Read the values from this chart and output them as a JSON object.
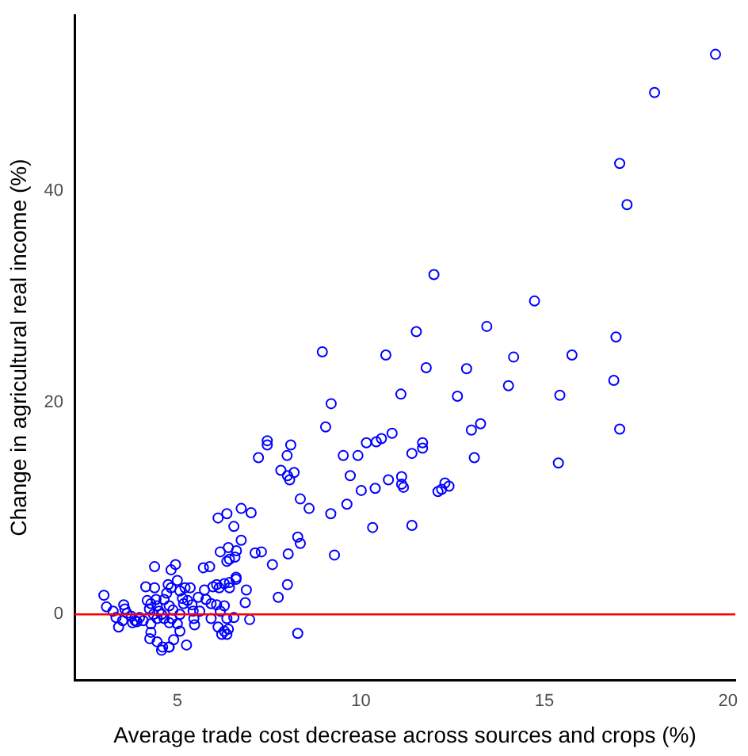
{
  "chart_data": {
    "type": "scatter",
    "xlabel": "Average trade cost decrease across sources and crops (%)",
    "ylabel": "Change in agricultural real income (%)",
    "xlim": [
      2.2,
      20.2
    ],
    "xticks": [
      5,
      10,
      15,
      20
    ],
    "ylim": [
      -6.2,
      56.6
    ],
    "yticks": [
      0,
      20,
      40
    ],
    "grid": false,
    "legend": false,
    "marker": "circle",
    "ref_lines": [
      {
        "axis": "y",
        "value": 0,
        "color": "#ff0000",
        "line_style": "solid"
      }
    ],
    "series": [
      {
        "color": "#0000ff",
        "x": [
          19.66,
          18.0,
          17.05,
          17.25,
          11.99,
          14.73,
          13.43,
          16.95,
          14.16,
          15.75,
          12.88,
          14.02,
          12.63,
          15.42,
          16.89,
          13.26,
          13.01,
          17.05,
          13.09,
          15.38,
          12.29,
          12.2,
          12.4,
          12.1,
          11.51,
          8.95,
          10.68,
          11.78,
          11.09,
          9.19,
          9.04,
          7.45,
          7.45,
          8.09,
          7.21,
          7.99,
          9.52,
          9.92,
          10.15,
          10.42,
          10.56,
          10.85,
          11.39,
          11.68,
          11.68,
          9.71,
          10.75,
          11.11,
          11.11,
          11.16,
          10.01,
          10.39,
          9.62,
          9.18,
          11.39,
          10.32,
          9.28,
          3.0,
          3.07,
          3.25,
          3.54,
          3.33,
          3.4,
          3.51,
          3.63,
          3.75,
          3.85,
          3.97,
          4.07,
          3.78,
          3.9,
          3.57,
          4.14,
          4.38,
          4.38,
          4.18,
          4.28,
          4.24,
          4.42,
          4.45,
          4.5,
          4.57,
          4.35,
          4.45,
          4.64,
          4.28,
          4.28,
          4.25,
          4.45,
          4.6,
          4.57,
          4.78,
          4.71,
          4.64,
          4.83,
          4.78,
          4.88,
          4.85,
          4.78,
          4.83,
          4.95,
          4.75,
          5.0,
          5.07,
          5.14,
          5.17,
          5.07,
          5.0,
          5.07,
          4.9,
          4.77,
          5.21,
          5.35,
          5.28,
          5.4,
          5.43,
          5.25,
          5.45,
          5.47,
          5.61,
          5.57,
          5.74,
          5.78,
          5.92,
          5.97,
          5.71,
          5.88,
          5.92,
          6.11,
          6.28,
          6.35,
          6.21,
          6.07,
          6.28,
          6.42,
          6.35,
          6.39,
          6.17,
          6.07,
          6.14,
          6.28,
          6.42,
          6.6,
          6.11,
          6.35,
          6.54,
          6.74,
          7.01,
          6.74,
          6.39,
          6.42,
          6.57,
          6.17,
          6.61,
          6.35,
          6.6,
          6.88,
          6.85,
          6.97,
          6.54,
          7.12,
          7.29,
          7.59,
          8.02,
          8.28,
          8.35,
          8.0,
          7.75,
          8.28,
          8.35,
          8.59,
          7.82,
          8.0,
          8.06,
          8.18
        ],
        "values": [
          52.9,
          49.3,
          42.6,
          38.7,
          32.1,
          29.6,
          27.2,
          26.2,
          24.3,
          24.5,
          23.2,
          21.6,
          20.6,
          20.7,
          22.1,
          18.0,
          17.4,
          17.5,
          14.8,
          14.3,
          12.4,
          11.8,
          12.1,
          11.6,
          26.7,
          24.8,
          24.5,
          23.3,
          20.8,
          19.9,
          17.7,
          16.4,
          16.0,
          16.0,
          14.8,
          15.0,
          15.0,
          15.0,
          16.2,
          16.3,
          16.6,
          17.1,
          15.2,
          15.7,
          16.2,
          13.1,
          12.7,
          13.0,
          12.3,
          12.0,
          11.7,
          11.9,
          10.4,
          9.5,
          8.4,
          8.2,
          5.6,
          1.8,
          0.7,
          0.3,
          0.9,
          -0.3,
          -1.2,
          -0.6,
          0.1,
          -0.2,
          -0.6,
          -0.3,
          -0.6,
          -0.8,
          -0.7,
          0.5,
          2.6,
          2.5,
          4.5,
          1.3,
          1.0,
          0.5,
          1.4,
          0.8,
          0.3,
          0.0,
          0.0,
          -0.4,
          -0.4,
          -0.9,
          -1.7,
          -2.3,
          -2.6,
          -3.1,
          -3.4,
          -3.1,
          2.0,
          1.4,
          2.5,
          0.8,
          0.4,
          -0.4,
          -0.8,
          4.2,
          4.7,
          2.8,
          3.2,
          2.2,
          1.5,
          1.0,
          0.0,
          -0.9,
          -1.6,
          -2.4,
          -3.1,
          2.5,
          2.5,
          1.3,
          0.9,
          0.3,
          -2.9,
          -0.4,
          -1.0,
          0.3,
          1.6,
          2.3,
          1.4,
          1.0,
          2.6,
          4.4,
          4.5,
          -0.4,
          -1.2,
          -1.6,
          -1.9,
          -1.9,
          0.9,
          0.8,
          2.5,
          -0.4,
          -1.4,
          0.3,
          2.8,
          2.5,
          2.9,
          3.0,
          3.3,
          9.1,
          9.5,
          8.3,
          10.0,
          9.6,
          7.0,
          6.3,
          5.2,
          5.4,
          5.9,
          6.0,
          5.0,
          3.5,
          2.3,
          1.1,
          -0.5,
          -0.3,
          5.8,
          5.9,
          4.7,
          5.7,
          7.3,
          6.7,
          2.8,
          1.6,
          -1.8,
          10.9,
          10.0,
          13.6,
          13.1,
          12.7,
          13.4
        ]
      }
    ]
  }
}
